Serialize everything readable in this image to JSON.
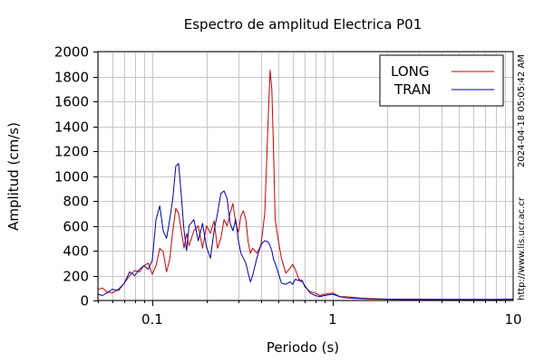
{
  "chart_data": {
    "type": "line",
    "title": "Espectro de amplitud Electrica P01",
    "xlabel": "Periodo (s)",
    "ylabel": "Amplitud (cm/s)",
    "x_scale": "log",
    "xlim": [
      0.05,
      10
    ],
    "ylim": [
      0,
      2000
    ],
    "x_ticks": [
      0.1,
      1,
      10
    ],
    "x_tick_labels": [
      "0.1",
      "1",
      "10"
    ],
    "y_ticks": [
      0,
      200,
      400,
      600,
      800,
      1000,
      1200,
      1400,
      1600,
      1800,
      2000
    ],
    "y_tick_labels": [
      "0",
      "200",
      "400",
      "600",
      "800",
      "1000",
      "1200",
      "1400",
      "1600",
      "1800",
      "2000"
    ],
    "grid": true,
    "legend_position": "top-right",
    "series": [
      {
        "name": "LONG",
        "color": "#cc0000",
        "x": [
          0.05,
          0.053,
          0.056,
          0.06,
          0.065,
          0.07,
          0.075,
          0.08,
          0.085,
          0.09,
          0.095,
          0.1,
          0.105,
          0.11,
          0.115,
          0.12,
          0.125,
          0.13,
          0.135,
          0.14,
          0.145,
          0.15,
          0.155,
          0.16,
          0.17,
          0.18,
          0.19,
          0.2,
          0.21,
          0.22,
          0.23,
          0.24,
          0.25,
          0.26,
          0.27,
          0.28,
          0.29,
          0.3,
          0.31,
          0.32,
          0.33,
          0.34,
          0.35,
          0.36,
          0.38,
          0.4,
          0.42,
          0.44,
          0.45,
          0.46,
          0.47,
          0.48,
          0.5,
          0.52,
          0.55,
          0.58,
          0.6,
          0.62,
          0.65,
          0.68,
          0.7,
          0.75,
          0.8,
          0.85,
          0.9,
          1.0,
          1.1,
          1.2,
          1.4,
          1.6,
          2.0,
          2.5,
          3.0,
          4.0,
          5.0,
          6.0,
          8.0,
          10.0
        ],
        "y": [
          90,
          100,
          70,
          60,
          90,
          140,
          200,
          240,
          230,
          280,
          300,
          210,
          280,
          420,
          390,
          230,
          330,
          560,
          740,
          700,
          560,
          420,
          540,
          440,
          560,
          600,
          420,
          600,
          540,
          640,
          420,
          500,
          650,
          600,
          700,
          780,
          620,
          550,
          680,
          720,
          650,
          470,
          380,
          420,
          380,
          440,
          700,
          1500,
          1850,
          1700,
          1200,
          650,
          480,
          340,
          220,
          260,
          290,
          250,
          170,
          160,
          110,
          70,
          60,
          40,
          50,
          60,
          30,
          30,
          20,
          15,
          10,
          10,
          10,
          8,
          8,
          8,
          8,
          10
        ]
      },
      {
        "name": "TRAN",
        "color": "#0000aa",
        "x": [
          0.05,
          0.053,
          0.056,
          0.06,
          0.065,
          0.07,
          0.075,
          0.08,
          0.085,
          0.09,
          0.095,
          0.1,
          0.105,
          0.11,
          0.115,
          0.12,
          0.125,
          0.13,
          0.135,
          0.14,
          0.145,
          0.15,
          0.155,
          0.16,
          0.17,
          0.18,
          0.19,
          0.2,
          0.21,
          0.22,
          0.23,
          0.24,
          0.25,
          0.26,
          0.27,
          0.28,
          0.29,
          0.3,
          0.31,
          0.32,
          0.33,
          0.34,
          0.35,
          0.36,
          0.38,
          0.4,
          0.42,
          0.44,
          0.45,
          0.46,
          0.47,
          0.48,
          0.5,
          0.52,
          0.55,
          0.58,
          0.6,
          0.62,
          0.65,
          0.68,
          0.7,
          0.75,
          0.8,
          0.85,
          0.9,
          1.0,
          1.1,
          1.2,
          1.4,
          1.6,
          2.0,
          2.5,
          3.0,
          4.0,
          5.0,
          6.0,
          8.0,
          10.0
        ],
        "y": [
          50,
          40,
          60,
          90,
          80,
          140,
          230,
          200,
          250,
          280,
          250,
          320,
          650,
          760,
          560,
          500,
          650,
          820,
          1080,
          1100,
          840,
          560,
          400,
          600,
          650,
          480,
          620,
          430,
          340,
          560,
          700,
          860,
          880,
          820,
          620,
          560,
          650,
          480,
          380,
          340,
          300,
          220,
          150,
          200,
          340,
          450,
          480,
          470,
          440,
          400,
          330,
          300,
          220,
          140,
          130,
          150,
          130,
          170,
          160,
          150,
          120,
          60,
          40,
          30,
          40,
          50,
          30,
          20,
          15,
          12,
          10,
          8,
          8,
          8,
          8,
          8,
          8,
          10
        ]
      }
    ]
  },
  "annotations": {
    "timestamp": "2024-04-18 05:05:42 AM",
    "website": "http://www.lis.ucr.ac.cr"
  },
  "legend": {
    "items": [
      {
        "label": "LONG",
        "color": "#cc0000"
      },
      {
        "label": "TRAN",
        "color": "#0000aa"
      }
    ]
  }
}
